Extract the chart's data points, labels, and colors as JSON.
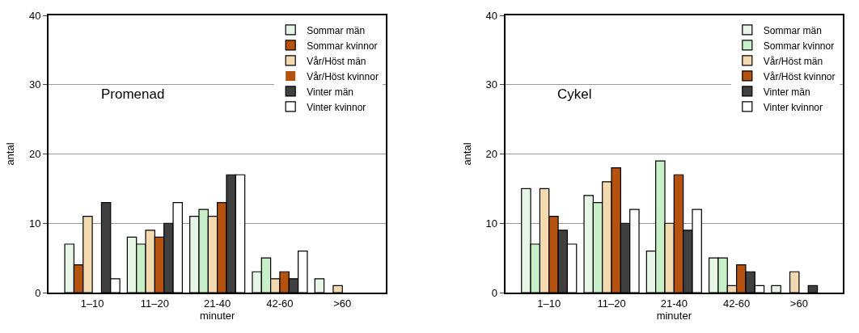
{
  "chart_data": [
    {
      "type": "bar",
      "title": "Promenad",
      "xlabel": "minuter",
      "ylabel": "antal",
      "categories": [
        "1–10",
        "11–20",
        "21-40",
        "42-60",
        ">60"
      ],
      "ylim": [
        0,
        40
      ],
      "yticks": [
        0,
        10,
        20,
        30,
        40
      ],
      "grid": "y",
      "legend": "top right",
      "series": [
        {
          "name": "Sommar män",
          "color": "#e6f5e6",
          "values": [
            7,
            8,
            11,
            3,
            2
          ]
        },
        {
          "name": "Sommar kvinnor",
          "color": "#c8f0c8",
          "colors": [
            "#b5520f",
            "#c8f0c8",
            "#c8f0c8",
            "#c8f0c8",
            "#c8f0c8"
          ],
          "values": [
            4,
            7,
            12,
            5,
            0
          ]
        },
        {
          "name": "Vår/Höst män",
          "color": "#f3d9b0",
          "values": [
            11,
            9,
            11,
            2,
            1
          ]
        },
        {
          "name": "Vår/Höst kvinnor",
          "color": "#b5520f",
          "values": [
            0,
            8,
            13,
            3,
            0
          ]
        },
        {
          "name": "Vinter män",
          "color": "#404040",
          "values": [
            13,
            10,
            17,
            2,
            0
          ]
        },
        {
          "name": "Vinter kvinnor",
          "color": "#ffffff",
          "values": [
            2,
            13,
            17,
            6,
            0
          ]
        }
      ]
    },
    {
      "type": "bar",
      "title": "Cykel",
      "xlabel": "minuter",
      "ylabel": "antal",
      "categories": [
        "1–10",
        "11–20",
        "21-40",
        "42-60",
        ">60"
      ],
      "ylim": [
        0,
        40
      ],
      "yticks": [
        0,
        10,
        20,
        30,
        40
      ],
      "grid": "y",
      "legend": "top right",
      "series": [
        {
          "name": "Sommar män",
          "color": "#e6f5e6",
          "values": [
            15,
            14,
            6,
            5,
            1
          ]
        },
        {
          "name": "Sommar kvinnor",
          "color": "#c8f0c8",
          "values": [
            7,
            13,
            19,
            5,
            0
          ]
        },
        {
          "name": "Vår/Höst män",
          "color": "#f3d9b0",
          "values": [
            15,
            16,
            10,
            1,
            3
          ]
        },
        {
          "name": "Vår/Höst kvinnor",
          "color": "#b5520f",
          "values": [
            11,
            18,
            17,
            4,
            0
          ]
        },
        {
          "name": "Vinter män",
          "color": "#404040",
          "values": [
            9,
            10,
            9,
            3,
            1
          ]
        },
        {
          "name": "Vinter kvinnor",
          "color": "#ffffff",
          "values": [
            7,
            12,
            12,
            1,
            0
          ]
        }
      ]
    }
  ]
}
